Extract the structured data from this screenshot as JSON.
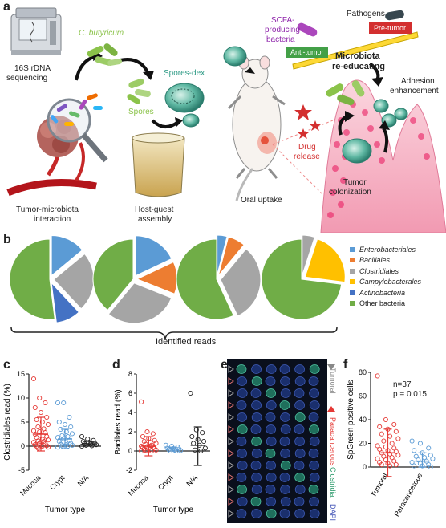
{
  "panel_labels": {
    "a": "a",
    "b": "b",
    "c": "c",
    "d": "d",
    "e": "e",
    "f": "f"
  },
  "panel_a": {
    "seq_label_1": "16S rDNA",
    "seq_label_2": "sequencing",
    "c_butyricum": "C. butyricum",
    "spores": "Spores",
    "spores_dex": "Spores-dex",
    "interaction_1": "Tumor-microbiota",
    "interaction_2": "interaction",
    "hg_1": "Host-guest",
    "hg_2": "assembly",
    "oral_uptake": "Oral uptake",
    "drug_1": "Drug",
    "drug_2": "release",
    "scfa_1": "SCFA-",
    "scfa_2": "producing",
    "scfa_3": "bacteria",
    "pathogens": "Pathogens",
    "pre_tumor": "Pre-tumor",
    "anti_tumor": "Anti-tumor",
    "re_edu_1": "Microbiota",
    "re_edu_2": "re-educating",
    "adhesion_1": "Adhesion",
    "adhesion_2": "enhancement",
    "colon_1": "Tumor",
    "colon_2": "colonization"
  },
  "panel_b": {
    "footer": "Identified reads",
    "legend": [
      {
        "label": "Enterobacteriales",
        "color": "#5b9bd5"
      },
      {
        "label": "Bacillales",
        "color": "#ed7d31"
      },
      {
        "label": "Clostridiales",
        "color": "#a5a5a5"
      },
      {
        "label": "Campylobacterales",
        "color": "#ffc000"
      },
      {
        "label": "Actinobacteria",
        "color": "#4472c4"
      },
      {
        "label": "Other bacteria",
        "color": "#70ad47"
      }
    ]
  },
  "panel_c": {
    "ylabel": "Clostridiales read (%)",
    "xlabel": "Tumor type"
  },
  "panel_d": {
    "ylabel": "Bacilales read (%)",
    "xlabel": "Tumor type"
  },
  "panel_e": {
    "tumoral": "Tumoral",
    "paracancerous": "Paracancerous",
    "clostridia": "Clostridia",
    "dapi": "DAPI"
  },
  "panel_f": {
    "ylabel": "SpGreen positive cells",
    "n_text": "n=37",
    "p_text": "p = 0.015"
  },
  "chart_data": [
    {
      "type": "pie",
      "categories": [
        "Enterobacteriales",
        "Bacillales",
        "Clostridiales",
        "Campylobacterales",
        "Actinobacteria",
        "Other bacteria"
      ],
      "series": [
        {
          "values": [
            14,
            0,
            24,
            0,
            10,
            52
          ]
        },
        {
          "values": [
            18,
            13,
            30,
            0,
            0,
            39
          ]
        },
        {
          "values": [
            4,
            7,
            32,
            0,
            0,
            57
          ]
        },
        {
          "values": [
            0,
            0,
            5,
            22,
            0,
            73
          ]
        }
      ]
    },
    {
      "type": "scatter",
      "title": "",
      "ylabel": "Clostridiales read (%)",
      "xlabel": "Tumor type",
      "categories": [
        "Mucosa",
        "Crypt",
        "N/A"
      ],
      "ylim": [
        -5,
        15
      ],
      "yticks": [
        -5,
        0,
        5,
        10,
        15
      ],
      "series": [
        {
          "name": "Mucosa",
          "color": "#e53935",
          "values": [
            14,
            10,
            9,
            8,
            7,
            6,
            5.5,
            5,
            4.5,
            4,
            3.6,
            3.2,
            3,
            2.8,
            2.5,
            2.2,
            2,
            1.8,
            1.5,
            1.3,
            1.1,
            1,
            0.8,
            0.6,
            0.5,
            0.3,
            0.2,
            0.1,
            0,
            0,
            -0.2,
            -0.4
          ],
          "mean": 2.5,
          "sd_low": -1,
          "sd_high": 6
        },
        {
          "name": "Crypt",
          "color": "#5b9bd5",
          "values": [
            9,
            9,
            6,
            5,
            4.5,
            4,
            3.5,
            3,
            2.6,
            2.2,
            2,
            1.8,
            1.5,
            1.2,
            1,
            0.8,
            0.6,
            0.4,
            0.3,
            0.2,
            0.1,
            0,
            -0.2
          ],
          "mean": 1.5,
          "sd_low": -0.5,
          "sd_high": 3.5
        },
        {
          "name": "N/A",
          "color": "#222222",
          "values": [
            2,
            1.5,
            1.2,
            1,
            0.8,
            0.6,
            0.5,
            0.4,
            0.3,
            0.2,
            0.1,
            0
          ],
          "mean": 0.5,
          "sd_low": 0,
          "sd_high": 1
        }
      ]
    },
    {
      "type": "scatter",
      "ylabel": "Bacilales read (%)",
      "xlabel": "Tumor type",
      "categories": [
        "Mucosa",
        "Crypt",
        "N/A"
      ],
      "ylim": [
        -2,
        8
      ],
      "yticks": [
        -2,
        0,
        2,
        4,
        6,
        8
      ],
      "series": [
        {
          "name": "Mucosa",
          "color": "#e53935",
          "values": [
            5.1,
            2,
            1.8,
            1.5,
            1.3,
            1.1,
            1,
            0.9,
            0.8,
            0.7,
            0.6,
            0.5,
            0.45,
            0.4,
            0.35,
            0.3,
            0.25,
            0.2,
            0.15,
            0.1,
            0.05,
            0,
            0,
            0
          ],
          "mean": 0.5,
          "sd_low": -0.5,
          "sd_high": 1.5
        },
        {
          "name": "Crypt",
          "color": "#5b9bd5",
          "values": [
            0.6,
            0.5,
            0.4,
            0.3,
            0.25,
            0.2,
            0.15,
            0.1,
            0.05,
            0,
            0
          ],
          "mean": 0.2,
          "sd_low": 0,
          "sd_high": 0.4
        },
        {
          "name": "N/A",
          "color": "#222222",
          "values": [
            6,
            2.2,
            1.9,
            1.5,
            1.2,
            1,
            0.8,
            0.6,
            0.3,
            0.1,
            0
          ],
          "mean": 0.6,
          "sd_low": -1.5,
          "sd_high": 2.5
        }
      ]
    },
    {
      "type": "scatter",
      "ylabel": "SpGreen positive cells",
      "categories": [
        "Tumoral",
        "Paracancerous"
      ],
      "ylim": [
        0,
        80
      ],
      "yticks": [
        0,
        20,
        40,
        60,
        80
      ],
      "series": [
        {
          "name": "Tumoral",
          "color": "#e53935",
          "values": [
            77,
            40,
            36,
            34,
            32,
            30,
            28,
            26,
            24,
            22,
            20,
            18,
            17,
            16,
            15,
            14,
            13,
            12,
            11,
            10,
            9,
            8,
            7,
            6,
            5,
            4,
            3,
            2,
            2,
            1
          ],
          "mean": 12,
          "sd_low": -8,
          "sd_high": 32
        },
        {
          "name": "Paracancerous",
          "color": "#5b9bd5",
          "values": [
            22,
            20,
            16,
            14,
            12,
            10,
            9,
            8,
            7,
            6,
            5,
            4,
            3,
            2,
            1,
            1,
            0
          ],
          "mean": 5,
          "sd_low": 0,
          "sd_high": 12
        }
      ]
    }
  ]
}
